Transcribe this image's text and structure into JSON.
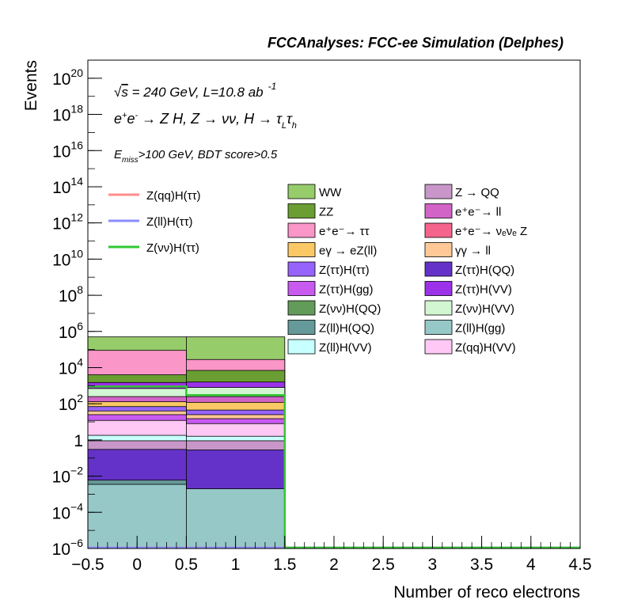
{
  "chart_data": {
    "type": "bar",
    "stacked": true,
    "title": "FCCAnalyses: FCC-ee Simulation (Delphes)",
    "xlabel": "Number of reco electrons",
    "ylabel": "Events",
    "xlim": [
      -0.5,
      4.5
    ],
    "ylim": [
      1e-06,
      1e+21
    ],
    "yscale": "log",
    "grid": false,
    "legend_placement": "top-right",
    "annotations": {
      "energy_lumi": "√s = 240 GeV, L=10.8 ab⁻¹",
      "process": "e⁺e⁻ → Z H, Z → νν, H → τ_L τ_h",
      "selection": "E_miss>100 GeV, BDT score>0.5"
    },
    "x_ticks": [
      -0.5,
      0,
      0.5,
      1,
      1.5,
      2,
      2.5,
      3,
      3.5,
      4,
      4.5
    ],
    "x_tick_labels": [
      "−0.5",
      "0",
      "0.5",
      "1",
      "1.5",
      "2",
      "2.5",
      "3",
      "3.5",
      "4",
      "4.5"
    ],
    "y_ticks": [
      {
        "exp": -6,
        "label": "10",
        "sup": "−6"
      },
      {
        "exp": -4,
        "label": "10",
        "sup": "−4"
      },
      {
        "exp": -2,
        "label": "10",
        "sup": "−2"
      },
      {
        "exp": 0,
        "label": "1",
        "sup": ""
      },
      {
        "exp": 2,
        "label": "10",
        "sup": "2"
      },
      {
        "exp": 4,
        "label": "10",
        "sup": "4"
      },
      {
        "exp": 6,
        "label": "10",
        "sup": "6"
      },
      {
        "exp": 8,
        "label": "10",
        "sup": "8"
      },
      {
        "exp": 10,
        "label": "10",
        "sup": "10"
      },
      {
        "exp": 12,
        "label": "10",
        "sup": "12"
      },
      {
        "exp": 14,
        "label": "10",
        "sup": "14"
      },
      {
        "exp": 16,
        "label": "10",
        "sup": "16"
      },
      {
        "exp": 18,
        "label": "10",
        "sup": "18"
      },
      {
        "exp": 20,
        "label": "10",
        "sup": "20"
      }
    ],
    "bins": [
      [
        -0.5,
        0.5
      ],
      [
        0.5,
        1.5
      ],
      [
        1.5,
        2.5
      ],
      [
        2.5,
        3.5
      ],
      [
        3.5,
        4.5
      ]
    ],
    "stack_layers": [
      {
        "name": "WW",
        "color": "#96cc6a",
        "cumulative_top": [
          500000,
          500000,
          0,
          0,
          0
        ]
      },
      {
        "name": "e⁺e⁻→ ττ",
        "color": "#fa96c8",
        "cumulative_top": [
          90000,
          28000,
          0,
          0,
          0
        ]
      },
      {
        "name": "ZZ",
        "color": "#6a9e32",
        "cumulative_top": [
          4000,
          7000,
          0,
          0,
          0
        ]
      },
      {
        "name": "Z(ττ)H(VV)",
        "color": "#9b32ea",
        "cumulative_top": [
          1500,
          1600,
          0,
          0,
          0
        ]
      },
      {
        "name": "Z(νν)H(VV)",
        "color": "#d2f5d2",
        "cumulative_top": [
          700,
          800,
          0,
          0,
          0
        ]
      },
      {
        "name": "e⁺e⁻→ ll",
        "color": "#d264c8",
        "cumulative_top": [
          250,
          250,
          0,
          0,
          0
        ]
      },
      {
        "name": "eγ → eZ(ll)",
        "color": "#fac864",
        "cumulative_top": [
          130,
          120,
          0,
          0,
          0
        ]
      },
      {
        "name": "Z(ττ)H(ττ)",
        "color": "#9664fa",
        "cumulative_top": [
          70,
          45,
          0,
          0,
          0
        ]
      },
      {
        "name": "γγ → ll",
        "color": "#ffc896",
        "cumulative_top": [
          40,
          25,
          0,
          0,
          0
        ]
      },
      {
        "name": "Z(ττ)H(gg)",
        "color": "#c85af0",
        "cumulative_top": [
          25,
          15,
          0,
          0,
          0
        ]
      },
      {
        "name": "Z(qq)H(VV)",
        "color": "#ffc8f5",
        "cumulative_top": [
          12,
          8,
          0,
          0,
          0
        ]
      },
      {
        "name": "Z(ll)H(VV)",
        "color": "#c8ffff",
        "cumulative_top": [
          1.8,
          1.6,
          0,
          0,
          0
        ]
      },
      {
        "name": "Z → QQ",
        "color": "#c896c8",
        "cumulative_top": [
          0.9,
          0.9,
          0,
          0,
          0
        ]
      },
      {
        "name": "Z(ττ)H(QQ)",
        "color": "#6432c8",
        "cumulative_top": [
          0.3,
          0.28,
          0,
          0,
          0
        ]
      },
      {
        "name": "Z(ll)H(QQ)",
        "color": "#669999",
        "cumulative_top": [
          0.006,
          0.0,
          0,
          0,
          0
        ]
      },
      {
        "name": "Z(ll)H(gg)",
        "color": "#96c8c8",
        "cumulative_top": [
          0.0035,
          0.002,
          0,
          0,
          0
        ]
      }
    ],
    "signal_lines": [
      {
        "name": "Z(qq)H(ττ)",
        "color": "#ff8c8c",
        "values": [
          0,
          0,
          0,
          0,
          0
        ]
      },
      {
        "name": "Z(ll)H(ττ)",
        "color": "#8c8cff",
        "values": [
          0,
          0,
          0,
          0,
          0
        ]
      },
      {
        "name": "Z(νν)H(ττ)",
        "color": "#32c832",
        "values": [
          900,
          300,
          0,
          0,
          0
        ]
      }
    ],
    "legend_signals": [
      {
        "label": "Z(qq)H(ττ)",
        "color": "#ff8c8c"
      },
      {
        "label": "Z(ll)H(ττ)",
        "color": "#8c8cff"
      },
      {
        "label": "Z(νν)H(ττ)",
        "color": "#32c832"
      }
    ],
    "legend_col1": [
      {
        "label": "WW",
        "color": "#96cc6a"
      },
      {
        "label": "ZZ",
        "color": "#6a9e32"
      },
      {
        "label": "e⁺e⁻→ ττ",
        "color": "#fa96c8"
      },
      {
        "label": "eγ → eZ(ll)",
        "color": "#fac864"
      },
      {
        "label": "Z(ττ)H(ττ)",
        "color": "#9664fa"
      },
      {
        "label": "Z(ττ)H(gg)",
        "color": "#c85af0"
      },
      {
        "label": "Z(νν)H(QQ)",
        "color": "#639b5a"
      },
      {
        "label": "Z(ll)H(QQ)",
        "color": "#669999"
      },
      {
        "label": "Z(ll)H(VV)",
        "color": "#c8ffff"
      }
    ],
    "legend_col2": [
      {
        "label": "Z → QQ",
        "color": "#c896c8"
      },
      {
        "label": "e⁺e⁻→ ll",
        "color": "#d264c8"
      },
      {
        "label": "e⁺e⁻→ νₑνₑ Z",
        "color": "#f5648c"
      },
      {
        "label": "γγ → ll",
        "color": "#ffc896"
      },
      {
        "label": "Z(ττ)H(QQ)",
        "color": "#6432c8"
      },
      {
        "label": "Z(ττ)H(VV)",
        "color": "#9b32ea"
      },
      {
        "label": "Z(νν)H(VV)",
        "color": "#d2f5d2"
      },
      {
        "label": "Z(ll)H(gg)",
        "color": "#96c8c8"
      },
      {
        "label": "Z(qq)H(VV)",
        "color": "#ffc8f5"
      }
    ]
  }
}
